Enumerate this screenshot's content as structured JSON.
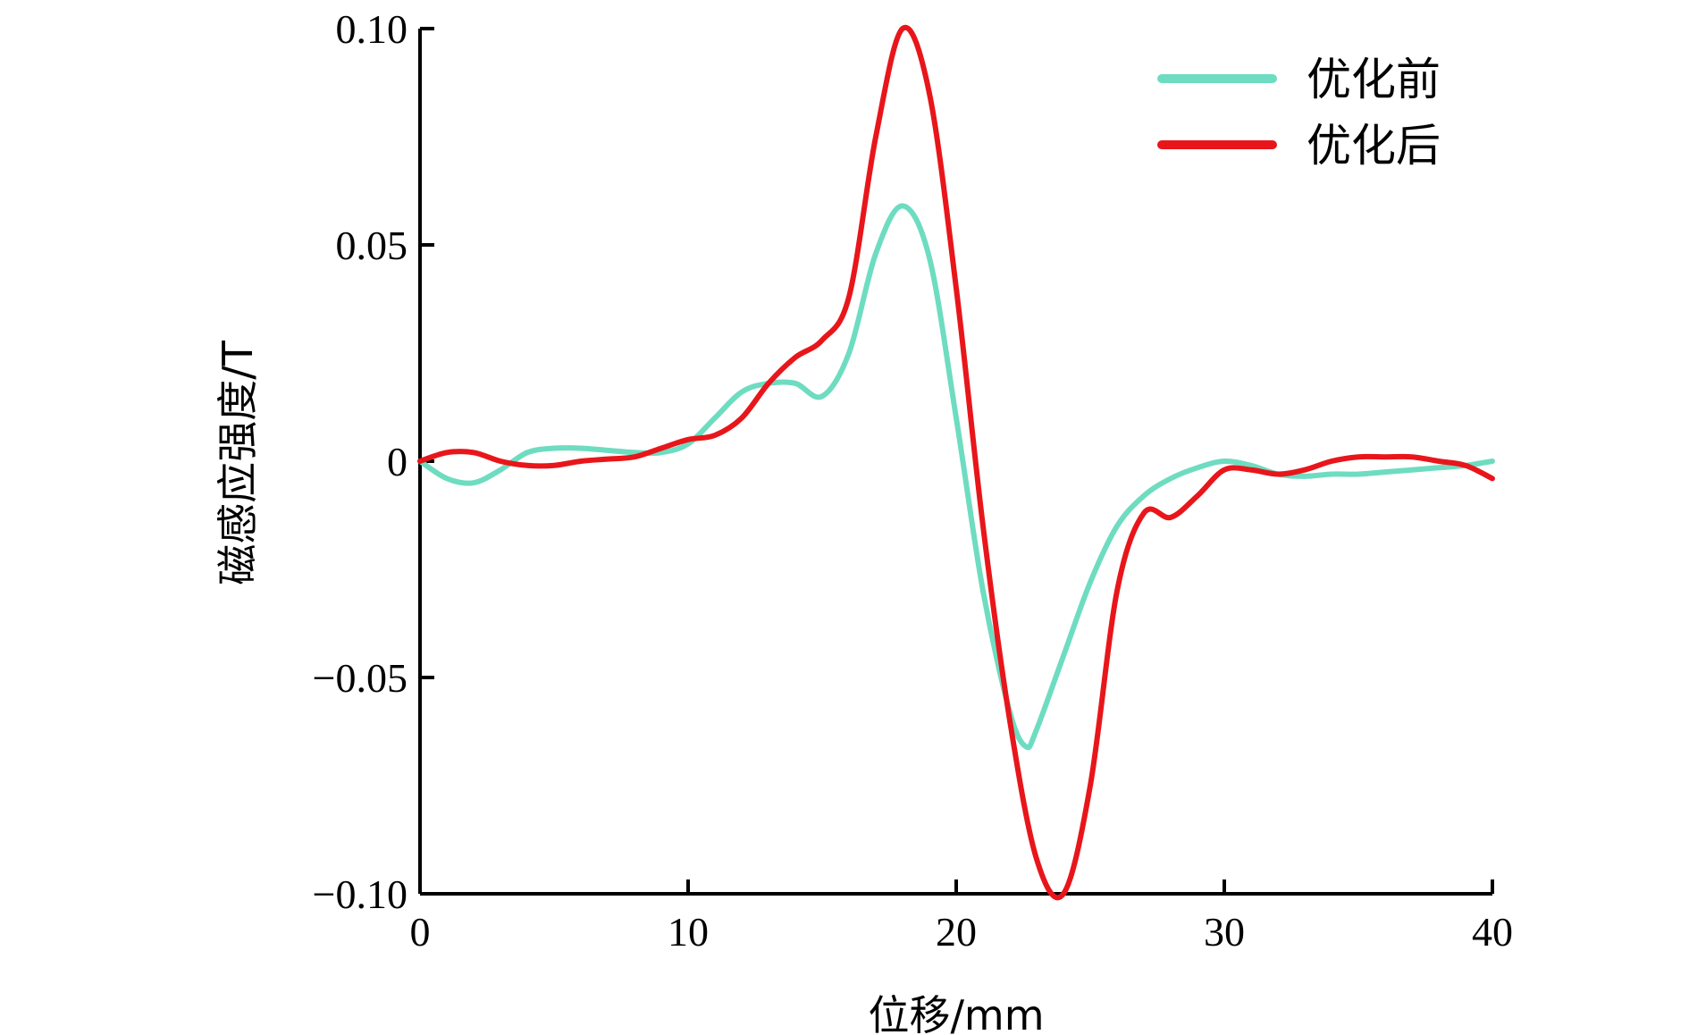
{
  "chart_data": {
    "type": "line",
    "xlabel": "位移/mm",
    "ylabel": "磁感应强度/T",
    "xlim": [
      0,
      40
    ],
    "ylim": [
      -0.1,
      0.1
    ],
    "x_ticks": [
      0,
      10,
      20,
      30,
      40
    ],
    "x_tick_labels": [
      "0",
      "10",
      "20",
      "30",
      "40"
    ],
    "y_ticks": [
      0.1,
      0.05,
      0,
      -0.05,
      -0.1
    ],
    "y_tick_labels": [
      "0.10",
      "0.05",
      "0",
      "−0.05",
      "−0.10"
    ],
    "grid": false,
    "legend_position": "top-right",
    "series": [
      {
        "name": "优化前",
        "color": "#6edcc0",
        "x": [
          0,
          1,
          2,
          3,
          4,
          5,
          6,
          7,
          8,
          9,
          10,
          11,
          12,
          13,
          14,
          15,
          16,
          17,
          18,
          19,
          20,
          21,
          22,
          22.6,
          23,
          24,
          25,
          26,
          27,
          28,
          29,
          30,
          31,
          32,
          33,
          34,
          35,
          36,
          37,
          38,
          39,
          40
        ],
        "y": [
          0,
          -0.004,
          -0.005,
          -0.002,
          0.002,
          0.003,
          0.003,
          0.0025,
          0.002,
          0.002,
          0.004,
          0.01,
          0.016,
          0.018,
          0.018,
          0.015,
          0.025,
          0.048,
          0.059,
          0.047,
          0.01,
          -0.03,
          -0.058,
          -0.066,
          -0.062,
          -0.045,
          -0.028,
          -0.015,
          -0.008,
          -0.004,
          -0.0015,
          0,
          -0.001,
          -0.003,
          -0.0035,
          -0.003,
          -0.003,
          -0.0025,
          -0.002,
          -0.0015,
          -0.001,
          0
        ]
      },
      {
        "name": "优化后",
        "color": "#e8161a",
        "x": [
          0,
          1,
          2,
          3,
          4,
          5,
          6,
          7,
          8,
          9,
          10,
          11,
          12,
          13,
          14,
          15,
          16,
          17,
          18,
          19,
          20,
          21,
          22,
          23,
          24,
          25,
          26,
          27,
          28,
          29,
          30,
          31,
          32,
          33,
          34,
          35,
          36,
          37,
          38,
          39,
          40
        ],
        "y": [
          0,
          0.002,
          0.002,
          0,
          -0.001,
          -0.001,
          0,
          0.0005,
          0.001,
          0.003,
          0.005,
          0.006,
          0.01,
          0.018,
          0.024,
          0.028,
          0.038,
          0.075,
          0.1,
          0.085,
          0.04,
          -0.015,
          -0.06,
          -0.092,
          -0.1,
          -0.075,
          -0.03,
          -0.012,
          -0.013,
          -0.008,
          -0.002,
          -0.002,
          -0.003,
          -0.002,
          0,
          0.001,
          0.001,
          0.001,
          0,
          -0.001,
          -0.004
        ]
      }
    ]
  }
}
